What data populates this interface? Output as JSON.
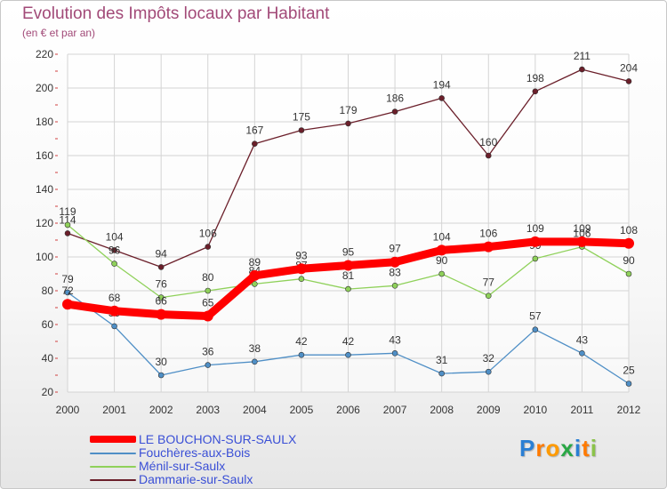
{
  "chart_data": {
    "type": "line",
    "title": "Evolution des Impôts locaux par Habitant",
    "subtitle": "(en € et par an)",
    "xlabel": "",
    "ylabel": "",
    "ylim": [
      20,
      220
    ],
    "yticks": [
      20,
      40,
      60,
      80,
      100,
      120,
      140,
      160,
      180,
      200,
      220
    ],
    "grid": true,
    "x": [
      "2000",
      "2001",
      "2002",
      "2003",
      "2004",
      "2005",
      "2006",
      "2007",
      "2008",
      "2009",
      "2010",
      "2011",
      "2012"
    ],
    "series": [
      {
        "name": "Dammarie-sur-Saulx",
        "color": "#6b1f2a",
        "values": [
          114,
          104,
          94,
          106,
          167,
          175,
          179,
          186,
          194,
          160,
          198,
          211,
          204
        ]
      },
      {
        "name": "Ménil-sur-Saulx",
        "color": "#8fd15a",
        "values": [
          119,
          96,
          76,
          80,
          84,
          87,
          81,
          83,
          90,
          77,
          99,
          106,
          90
        ]
      },
      {
        "name": "Fouchères-aux-Bois",
        "color": "#4f8fc6",
        "values": [
          79,
          59,
          30,
          36,
          38,
          42,
          42,
          43,
          31,
          32,
          57,
          43,
          25
        ]
      },
      {
        "name": "LE BOUCHON-SUR-SAULX",
        "color": "#ff0000",
        "values": [
          72,
          68,
          66,
          65,
          89,
          93,
          95,
          97,
          104,
          106,
          109,
          109,
          108
        ]
      }
    ],
    "legend": {
      "position": "bottom-left",
      "order": [
        "LE BOUCHON-SUR-SAULX",
        "Fouchères-aux-Bois",
        "Ménil-sur-Saulx",
        "Dammarie-sur-Saulx"
      ]
    }
  },
  "logo": {
    "letters": [
      "P",
      "r",
      "o",
      "x",
      "i",
      "t",
      "i"
    ],
    "colors": [
      "#2a7fd4",
      "#ff7a00",
      "#ff9a00",
      "#29a745",
      "#2a7fd4",
      "#ff7a00",
      "#8bc34a"
    ]
  }
}
